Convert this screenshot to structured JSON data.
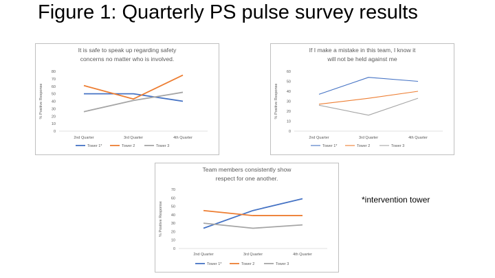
{
  "slide": {
    "title": "Figure 1: Quarterly PS pulse survey results",
    "note": "*intervention tower"
  },
  "chart_data": [
    {
      "type": "line",
      "title": "It is safe to speak up regarding safety concerns no matter who is involved.",
      "ylabel": "% Positive Response",
      "xlabel": "",
      "categories": [
        "2nd Quarter",
        "3rd Quarter",
        "4th Quarter"
      ],
      "ylim": [
        0,
        80
      ],
      "yticks": [
        0,
        10,
        20,
        30,
        40,
        50,
        60,
        70,
        80
      ],
      "grid": false,
      "legend": "bottom",
      "series": [
        {
          "name": "Tower 1*",
          "color": "#4472c4",
          "values": [
            50,
            50,
            40
          ]
        },
        {
          "name": "Tower 2",
          "color": "#ed7d31",
          "values": [
            61,
            43,
            75
          ]
        },
        {
          "name": "Tower 3",
          "color": "#a5a5a5",
          "values": [
            26,
            41,
            52
          ]
        }
      ]
    },
    {
      "type": "line",
      "title": "If I make a mistake in this team, I know it will not be held against me",
      "ylabel": "% Positive Response",
      "xlabel": "",
      "categories": [
        "2nd Quarter",
        "3rd Quarter",
        "4th Quarter"
      ],
      "ylim": [
        0,
        60
      ],
      "yticks": [
        0,
        10,
        20,
        30,
        40,
        50,
        60
      ],
      "grid": false,
      "legend": "bottom",
      "series": [
        {
          "name": "Tower 1*",
          "color": "#4472c4",
          "values": [
            37,
            54,
            50
          ]
        },
        {
          "name": "Tower 2",
          "color": "#ed7d31",
          "values": [
            27,
            33,
            40
          ]
        },
        {
          "name": "Tower 3",
          "color": "#a5a5a5",
          "values": [
            26,
            16,
            33
          ]
        }
      ]
    },
    {
      "type": "line",
      "title": "Team members consistently show respect for one another.",
      "ylabel": "% Positive Response",
      "xlabel": "",
      "categories": [
        "2nd Quarter",
        "3rd Quarter",
        "4th Quarter"
      ],
      "ylim": [
        0,
        70
      ],
      "yticks": [
        0,
        10,
        20,
        30,
        40,
        50,
        60,
        70
      ],
      "grid": false,
      "legend": "bottom",
      "series": [
        {
          "name": "Tower 1*",
          "color": "#4472c4",
          "values": [
            24,
            45,
            59
          ]
        },
        {
          "name": "Tower 2",
          "color": "#ed7d31",
          "values": [
            45,
            39,
            39
          ]
        },
        {
          "name": "Tower 3",
          "color": "#a5a5a5",
          "values": [
            30,
            24,
            28
          ]
        }
      ]
    }
  ]
}
